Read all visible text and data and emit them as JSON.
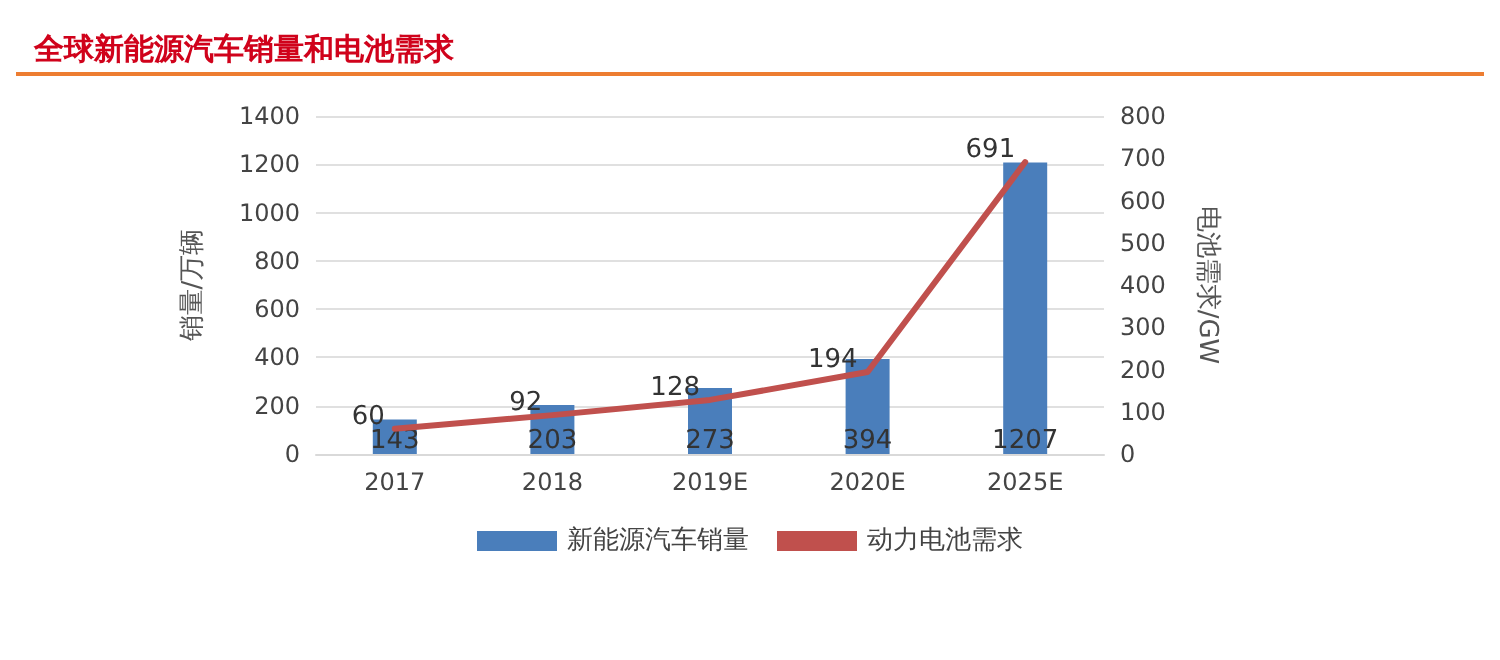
{
  "chart_data": {
    "type": "bar",
    "title": "全球新能源汽车销量和电池需求",
    "categories": [
      "2017",
      "2018",
      "2019E",
      "2020E",
      "2025E"
    ],
    "series": [
      {
        "name": "新能源汽车销量",
        "color": "#4a7ebb",
        "values": [
          143,
          203,
          273,
          394,
          1207
        ]
      },
      {
        "name": "动力电池需求",
        "type": "line",
        "axis": "y2",
        "color": "#c0504d",
        "values": [
          60,
          92,
          128,
          194,
          691
        ]
      }
    ],
    "ylabel": "销量/万辆",
    "y2label": "电池需求/GW",
    "ylim": [
      0,
      1400
    ],
    "yticks": [
      0,
      200,
      400,
      600,
      800,
      1000,
      1200,
      1400
    ],
    "y2lim": [
      0,
      800
    ],
    "y2ticks": [
      0,
      100,
      200,
      300,
      400,
      500,
      600,
      700,
      800
    ],
    "grid": "y",
    "legend": "bottom",
    "data_labels": true,
    "marker": "none",
    "line_style": "solid"
  }
}
